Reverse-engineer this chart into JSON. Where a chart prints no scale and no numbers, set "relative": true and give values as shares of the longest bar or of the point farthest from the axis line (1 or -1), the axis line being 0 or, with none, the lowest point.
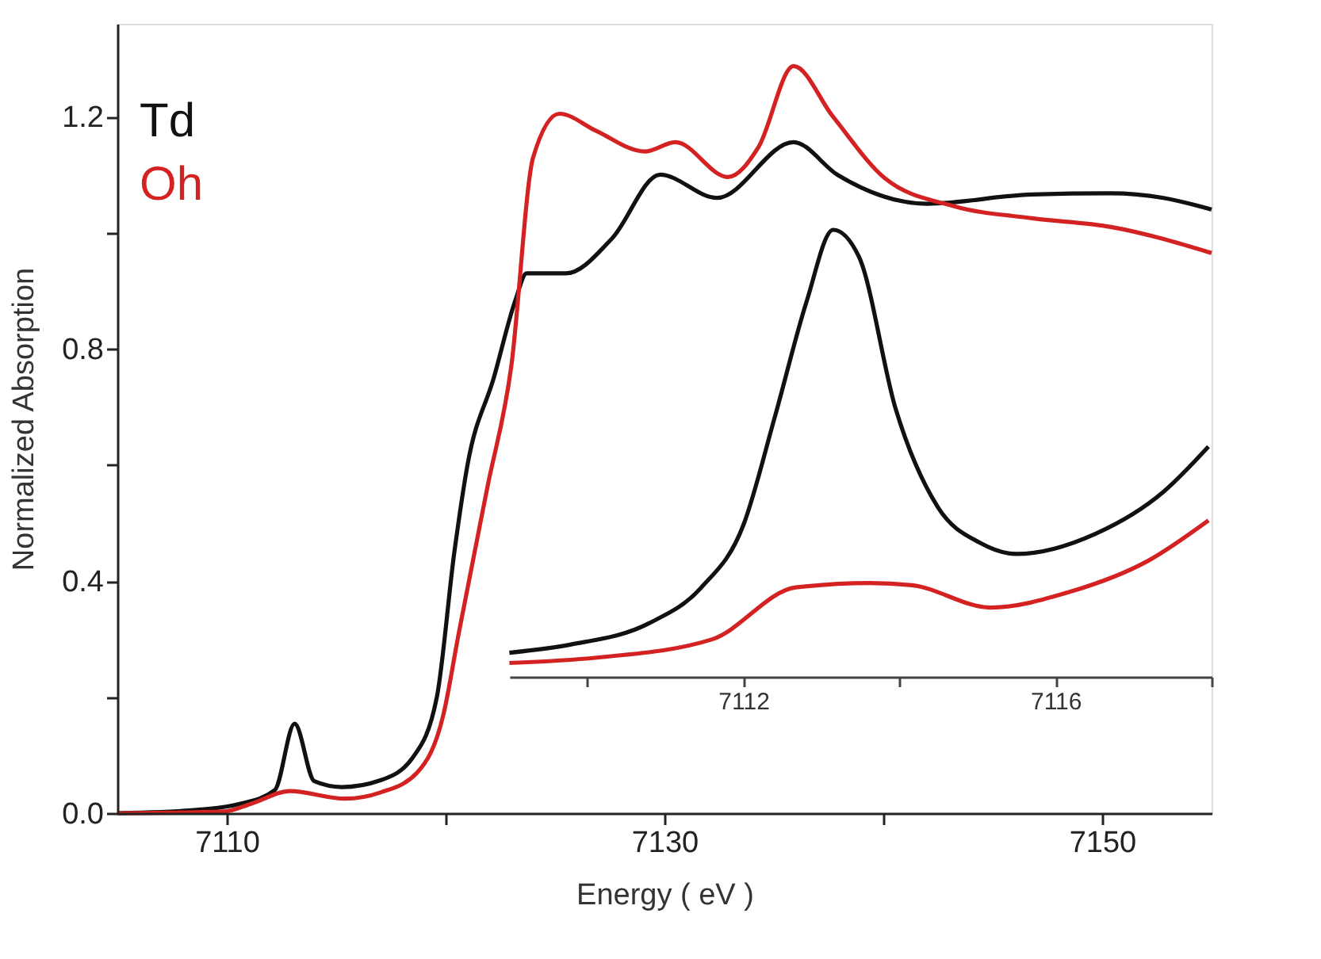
{
  "chart_data": [
    {
      "type": "line",
      "xlabel": "Energy ( eV )",
      "ylabel": "Normalized Absorption",
      "xlim": [
        7105,
        7155
      ],
      "ylim": [
        0,
        1.36
      ],
      "xticks": [
        7110,
        {
          "value": 7120,
          "label": null
        },
        7130,
        {
          "value": 7140,
          "label": null
        },
        7150
      ],
      "yticks": [
        {
          "value": 0,
          "label": "0.0"
        },
        {
          "value": 0.2,
          "label": null
        },
        {
          "value": 0.4,
          "label": "0.4"
        },
        {
          "value": 0.6,
          "label": null
        },
        {
          "value": 0.8,
          "label": "0.8"
        },
        {
          "value": 1.0,
          "label": null
        },
        {
          "value": 1.2,
          "label": "1.2"
        }
      ],
      "legend": "top left",
      "grid": false,
      "series": [
        {
          "name": "Td",
          "color": "#111111",
          "x": [
            7105,
            7108.4,
            7110.6,
            7112.2,
            7113.1,
            7114.0,
            7115.25,
            7117.05,
            7118.5,
            7119.6,
            7120.4,
            7121.0,
            7122.2,
            7123.2,
            7123.7,
            7125.5,
            7127.6,
            7129.8,
            7132.4,
            7135.9,
            7137.9,
            7142.0,
            7146.8,
            7150.4,
            7152.8,
            7155.0
          ],
          "values": [
            0.0,
            0.005,
            0.016,
            0.04,
            0.154,
            0.055,
            0.045,
            0.057,
            0.096,
            0.2,
            0.45,
            0.6,
            0.75,
            0.885,
            0.93,
            0.93,
            0.99,
            1.1,
            1.06,
            1.156,
            1.1,
            1.05,
            1.066,
            1.068,
            1.06,
            1.04
          ]
        },
        {
          "name": "Oh",
          "color": "#d42222",
          "x": [
            7105,
            7109.9,
            7111.1,
            7112.9,
            7115.4,
            7117.05,
            7118.7,
            7119.9,
            7120.6,
            7121.9,
            7123.0,
            7124.0,
            7125.2,
            7126.9,
            7129.1,
            7130.5,
            7132.9,
            7134.3,
            7135.9,
            7137.7,
            7140.1,
            7143.2,
            7146.8,
            7150.4,
            7155.0
          ],
          "values": [
            0.0,
            0.003,
            0.016,
            0.038,
            0.025,
            0.036,
            0.07,
            0.17,
            0.31,
            0.56,
            0.77,
            1.13,
            1.205,
            1.175,
            1.14,
            1.156,
            1.096,
            1.148,
            1.287,
            1.2,
            1.093,
            1.046,
            1.025,
            1.01,
            0.965
          ]
        }
      ]
    },
    {
      "type": "line",
      "relative": true,
      "xlim": [
        7109,
        7118
      ],
      "xticks": [
        {
          "value": 7110,
          "label": null
        },
        7112,
        {
          "value": 7114,
          "label": null
        },
        7116,
        {
          "value": 7118,
          "label": null
        }
      ],
      "tick_labels": "x",
      "series": [
        {
          "color": "#111111",
          "x": [
            7109.0,
            7109.78,
            7110.79,
            7111.46,
            7112.0,
            7112.4,
            7112.81,
            7113.15,
            7113.48,
            7113.95,
            7114.49,
            7115.03,
            7115.5,
            7116.51,
            7117.39,
            7117.96
          ],
          "values": [
            0.054,
            0.072,
            0.12,
            0.2,
            0.34,
            0.58,
            0.84,
            1.0,
            0.94,
            0.6,
            0.38,
            0.3,
            0.275,
            0.32,
            0.415,
            0.515
          ]
        },
        {
          "color": "#d42222",
          "x": [
            7109.0,
            7110.12,
            7111.6,
            7112.67,
            7113.62,
            7114.16,
            7115.17,
            7116.18,
            7117.19,
            7117.96
          ],
          "values": [
            0.031,
            0.043,
            0.084,
            0.2,
            0.21,
            0.205,
            0.155,
            0.19,
            0.26,
            0.35
          ]
        }
      ]
    }
  ]
}
